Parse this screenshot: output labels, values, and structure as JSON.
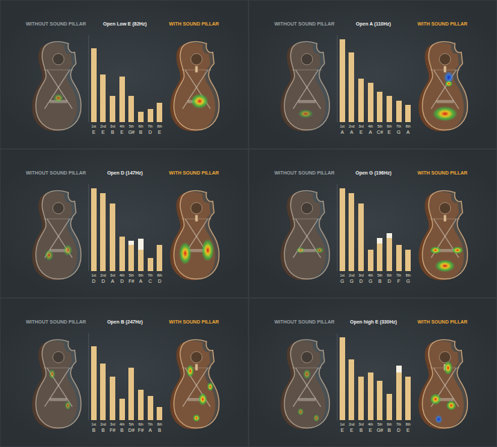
{
  "chart_data": [
    {
      "type": "bar",
      "title": "Open Low E (82Hz)",
      "annotations": [
        "WITHOUT SOUND PILLAR",
        "WITH SOUND PILLAR"
      ],
      "categories": [
        "1st",
        "2nd",
        "3rd",
        "4th",
        "5th",
        "6th",
        "7th",
        "8th"
      ],
      "notes": [
        "E",
        "E",
        "B",
        "E",
        "G#",
        "B",
        "D",
        "E"
      ],
      "series": [
        {
          "color": "#e6c487",
          "values": [
            85,
            55,
            30,
            52,
            30,
            12,
            15,
            22
          ]
        },
        {
          "color": "#f5f1e6",
          "values": [
            0,
            0,
            0,
            0,
            0,
            0,
            0,
            0
          ]
        }
      ],
      "stacked": true,
      "ylim": [
        0,
        100
      ],
      "grid": false,
      "tick_labels": "x"
    },
    {
      "type": "bar",
      "title": "Open A (110Hz)",
      "annotations": [
        "WITHOUT SOUND PILLAR",
        "WITH SOUND PILLAR"
      ],
      "categories": [
        "1st",
        "2nd",
        "3rd",
        "4th",
        "5th",
        "6th",
        "7th",
        "8th"
      ],
      "notes": [
        "A",
        "A",
        "E",
        "A",
        "C#",
        "E",
        "G",
        "A"
      ],
      "series": [
        {
          "color": "#e6c487",
          "values": [
            95,
            80,
            50,
            45,
            35,
            30,
            25,
            20
          ]
        },
        {
          "color": "#f5f1e6",
          "values": [
            0,
            0,
            0,
            0,
            0,
            0,
            0,
            0
          ]
        }
      ],
      "stacked": true,
      "ylim": [
        0,
        100
      ],
      "grid": false,
      "tick_labels": "x"
    },
    {
      "type": "bar",
      "title": "Open D (147Hz)",
      "annotations": [
        "WITHOUT SOUND PILLAR",
        "WITH SOUND PILLAR"
      ],
      "categories": [
        "1st",
        "2nd",
        "3rd",
        "4th",
        "5th",
        "6th",
        "7th",
        "8th"
      ],
      "notes": [
        "D",
        "D",
        "A",
        "D",
        "F#",
        "A",
        "C",
        "D"
      ],
      "series": [
        {
          "color": "#e6c487",
          "values": [
            95,
            90,
            78,
            40,
            30,
            25,
            15,
            30
          ]
        },
        {
          "color": "#f5f1e6",
          "values": [
            0,
            0,
            0,
            0,
            5,
            12,
            0,
            0
          ]
        }
      ],
      "stacked": true,
      "ylim": [
        0,
        100
      ],
      "grid": false,
      "tick_labels": "x"
    },
    {
      "type": "bar",
      "title": "Open G (196Hz)",
      "annotations": [
        "WITHOUT SOUND PILLAR",
        "WITH SOUND PILLAR"
      ],
      "categories": [
        "1st",
        "2nd",
        "3rd",
        "4th",
        "5th",
        "6th",
        "7th",
        "8th"
      ],
      "notes": [
        "G",
        "G",
        "D",
        "G",
        "B",
        "D",
        "F",
        "G"
      ],
      "series": [
        {
          "color": "#e6c487",
          "values": [
            95,
            90,
            78,
            25,
            32,
            38,
            30,
            25
          ]
        },
        {
          "color": "#f5f1e6",
          "values": [
            0,
            0,
            0,
            0,
            6,
            6,
            0,
            0
          ]
        }
      ],
      "stacked": true,
      "ylim": [
        0,
        100
      ],
      "grid": false,
      "tick_labels": "x"
    },
    {
      "type": "bar",
      "title": "Open B (247Hz)",
      "annotations": [
        "WITHOUT SOUND PILLAR",
        "WITH SOUND PILLAR"
      ],
      "categories": [
        "1st",
        "2nd",
        "3rd",
        "4th",
        "5th",
        "6th",
        "7th",
        "8th"
      ],
      "notes": [
        "B",
        "B",
        "F#",
        "B",
        "D#",
        "F#",
        "A",
        "B"
      ],
      "series": [
        {
          "color": "#e6c487",
          "values": [
            85,
            65,
            50,
            25,
            60,
            35,
            28,
            15
          ]
        },
        {
          "color": "#f5f1e6",
          "values": [
            0,
            0,
            0,
            0,
            0,
            0,
            0,
            0
          ]
        }
      ],
      "stacked": true,
      "ylim": [
        0,
        100
      ],
      "grid": false,
      "tick_labels": "x"
    },
    {
      "type": "bar",
      "title": "Open high E (330Hz)",
      "annotations": [
        "WITHOUT SOUND PILLAR",
        "WITH SOUND PILLAR"
      ],
      "categories": [
        "1st",
        "2nd",
        "3rd",
        "4th",
        "5th",
        "6th",
        "7th",
        "8th"
      ],
      "notes": [
        "E",
        "E",
        "B",
        "E",
        "G#",
        "B",
        "D",
        "E"
      ],
      "series": [
        {
          "color": "#e6c487",
          "values": [
            95,
            70,
            50,
            55,
            45,
            30,
            55,
            50
          ]
        },
        {
          "color": "#f5f1e6",
          "values": [
            0,
            0,
            0,
            0,
            0,
            0,
            8,
            0
          ]
        }
      ],
      "stacked": true,
      "ylim": [
        0,
        100
      ],
      "grid": false,
      "tick_labels": "x"
    }
  ]
}
